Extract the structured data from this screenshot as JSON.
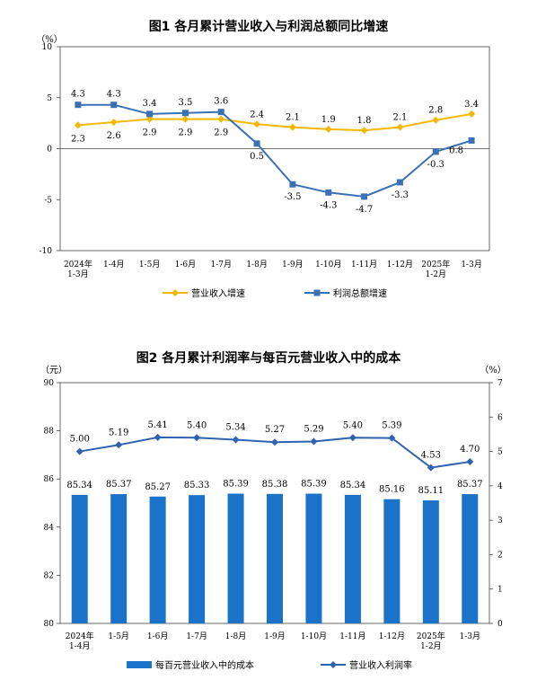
{
  "chart_data": [
    {
      "type": "line",
      "title": "图1  各月累计营业收入与利润总额同比增速",
      "ylabel": "（%）",
      "ylim": [
        -10,
        10
      ],
      "yticks": [
        "10",
        "5",
        "0",
        "-5",
        "-10"
      ],
      "categories": [
        "2024年\n1-3月",
        "1-4月",
        "1-5月",
        "1-6月",
        "1-7月",
        "1-8月",
        "1-9月",
        "1-10月",
        "1-11月",
        "1-12月",
        "2025年\n1-2月",
        "1-3月"
      ],
      "series": [
        {
          "name": "营业收入增速",
          "color": "#f5b800",
          "marker": "diamond",
          "values": [
            2.3,
            2.6,
            2.9,
            2.9,
            2.9,
            2.4,
            2.1,
            1.9,
            1.8,
            2.1,
            2.8,
            3.4
          ],
          "labels": [
            "2.3",
            "2.6",
            "2.9",
            "2.9",
            "2.9",
            "2.4",
            "2.1",
            "1.9",
            "1.8",
            "2.1",
            "2.8",
            "3.4"
          ]
        },
        {
          "name": "利润总额增速",
          "color": "#3a71b5",
          "marker": "square",
          "values": [
            4.3,
            4.3,
            3.4,
            3.5,
            3.6,
            0.5,
            -3.5,
            -4.3,
            -4.7,
            -3.3,
            -0.3,
            0.8
          ],
          "labels": [
            "4.3",
            "4.3",
            "3.4",
            "3.5",
            "3.6",
            "0.5",
            "-3.5",
            "-4.3",
            "-4.7",
            "-3.3",
            "-0.3",
            "0.8"
          ]
        }
      ]
    },
    {
      "type": "bar",
      "title": "图2  各月累计利润率与每百元营业收入中的成本",
      "ylabel_left": "（元）",
      "ylabel_right": "（%）",
      "ylim_left": [
        80,
        90
      ],
      "ylim_right": [
        0,
        7
      ],
      "yticks_left": [
        "90",
        "88",
        "86",
        "84",
        "82",
        "80"
      ],
      "yticks_right": [
        "7",
        "6",
        "5",
        "4",
        "3",
        "2",
        "1",
        "0"
      ],
      "categories": [
        "2024年\n1-4月",
        "1-5月",
        "1-6月",
        "1-7月",
        "1-8月",
        "1-9月",
        "1-10月",
        "1-11月",
        "1-12月",
        "2025年\n1-2月",
        "1-3月"
      ],
      "series": [
        {
          "name": "每百元营业收入中的成本",
          "color": "#1a73c8",
          "axis": "left",
          "values": [
            85.34,
            85.37,
            85.27,
            85.33,
            85.39,
            85.38,
            85.39,
            85.34,
            85.16,
            85.11,
            85.37
          ],
          "labels": [
            "85.34",
            "85.37",
            "85.27",
            "85.33",
            "85.39",
            "85.38",
            "85.39",
            "85.34",
            "85.16",
            "85.11",
            "85.37"
          ]
        },
        {
          "name": "营业收入利润率",
          "color": "#2f62b0",
          "axis": "right",
          "marker": "diamond",
          "values": [
            5.0,
            5.19,
            5.41,
            5.4,
            5.34,
            5.27,
            5.29,
            5.4,
            5.39,
            4.53,
            4.7
          ],
          "labels": [
            "5.00",
            "5.19",
            "5.41",
            "5.40",
            "5.34",
            "5.27",
            "5.29",
            "5.40",
            "5.39",
            "4.53",
            "4.70"
          ]
        }
      ]
    }
  ]
}
